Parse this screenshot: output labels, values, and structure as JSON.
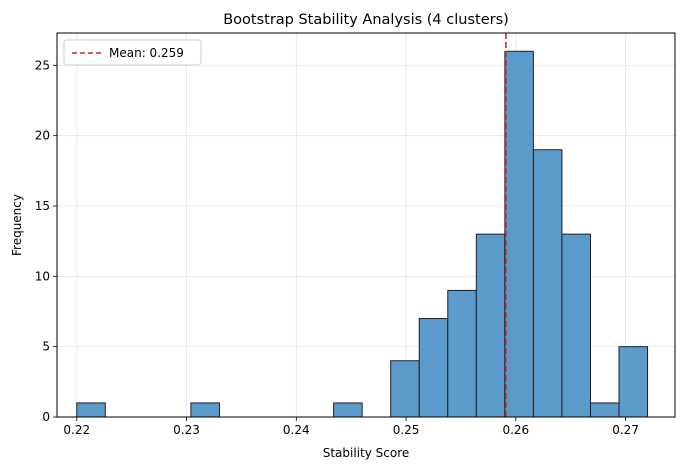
{
  "chart_data": {
    "type": "bar",
    "title": "Bootstrap Stability Analysis (4 clusters)",
    "xlabel": "Stability Score",
    "ylabel": "Frequency",
    "xlim": [
      0.2182,
      0.2745
    ],
    "ylim": [
      0,
      27.3
    ],
    "grid": true,
    "xticks": [
      0.22,
      0.23,
      0.24,
      0.25,
      0.26,
      0.27
    ],
    "xtick_labels": [
      "0.22",
      "0.23",
      "0.24",
      "0.25",
      "0.26",
      "0.27"
    ],
    "yticks": [
      0,
      5,
      10,
      15,
      20,
      25
    ],
    "ytick_labels": [
      "0",
      "5",
      "10",
      "15",
      "20",
      "25"
    ],
    "bin_width": 0.0026,
    "bins": [
      {
        "start": 0.22,
        "end": 0.2226,
        "count": 1
      },
      {
        "start": 0.2226,
        "end": 0.2252,
        "count": 0
      },
      {
        "start": 0.2252,
        "end": 0.2278,
        "count": 0
      },
      {
        "start": 0.2278,
        "end": 0.2304,
        "count": 0
      },
      {
        "start": 0.2304,
        "end": 0.233,
        "count": 1
      },
      {
        "start": 0.233,
        "end": 0.2356,
        "count": 0
      },
      {
        "start": 0.2356,
        "end": 0.2382,
        "count": 0
      },
      {
        "start": 0.2382,
        "end": 0.2408,
        "count": 0
      },
      {
        "start": 0.2408,
        "end": 0.2434,
        "count": 0
      },
      {
        "start": 0.2434,
        "end": 0.246,
        "count": 1
      },
      {
        "start": 0.246,
        "end": 0.2486,
        "count": 0
      },
      {
        "start": 0.2486,
        "end": 0.2512,
        "count": 4
      },
      {
        "start": 0.2512,
        "end": 0.2538,
        "count": 7
      },
      {
        "start": 0.2538,
        "end": 0.2564,
        "count": 9
      },
      {
        "start": 0.2564,
        "end": 0.259,
        "count": 13
      },
      {
        "start": 0.259,
        "end": 0.2616,
        "count": 26
      },
      {
        "start": 0.2616,
        "end": 0.2642,
        "count": 19
      },
      {
        "start": 0.2642,
        "end": 0.2668,
        "count": 13
      },
      {
        "start": 0.2668,
        "end": 0.2694,
        "count": 1
      },
      {
        "start": 0.2694,
        "end": 0.272,
        "count": 5
      }
    ],
    "mean_line": {
      "value": 0.2591,
      "label": "Mean: 0.259",
      "color": "#d62728",
      "style": "dashed"
    },
    "legend": {
      "position": "top-left",
      "entries": [
        "Mean: 0.259"
      ]
    },
    "colors": {
      "bar_fill": "#5b9bcb",
      "bar_edge": "#1f1f1f",
      "grid": "#e6e6e6"
    }
  }
}
